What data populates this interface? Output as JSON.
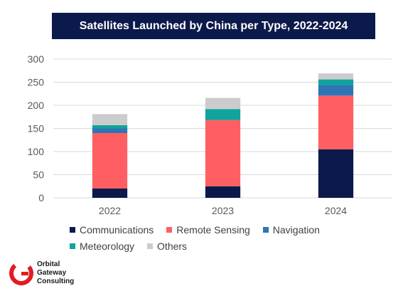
{
  "title": "Satellites Launched by China per Type, 2022-2024",
  "colors": {
    "banner": "#0c1a4b",
    "grid": "#d9d9d9",
    "logo": "#e21b23"
  },
  "logo": {
    "icon": "orbital-gateway-logo-icon",
    "line1": "Orbital",
    "line2": "Gateway",
    "line3": "Consulting"
  },
  "chart_data": {
    "type": "bar",
    "stacked": true,
    "categories": [
      "2022",
      "2023",
      "2024"
    ],
    "ylim": [
      0,
      300
    ],
    "yticks": [
      0,
      50,
      100,
      150,
      200,
      250,
      300
    ],
    "grid": true,
    "legend_position": "bottom",
    "series": [
      {
        "name": "Communications",
        "color": "#0c1a4b",
        "values": [
          20,
          25,
          105
        ]
      },
      {
        "name": "Remote Sensing",
        "color": "#ff5f62",
        "values": [
          120,
          143,
          116
        ]
      },
      {
        "name": "Navigation",
        "color": "#2e75b6",
        "values": [
          10,
          0,
          23
        ]
      },
      {
        "name": "Meteorology",
        "color": "#12a39c",
        "values": [
          7,
          24,
          12
        ]
      },
      {
        "name": "Others",
        "color": "#cccccc",
        "values": [
          24,
          24,
          13
        ]
      }
    ]
  }
}
